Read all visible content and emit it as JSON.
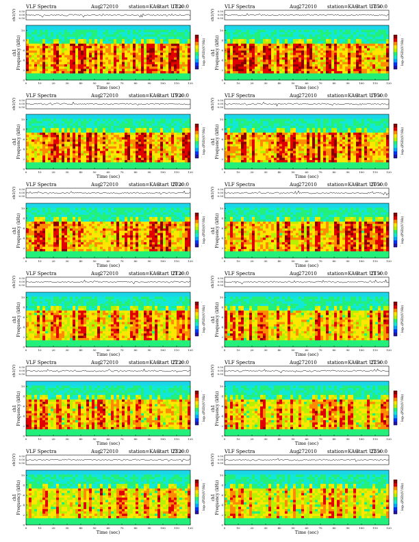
{
  "colors": {
    "colormap": [
      "#1f13a8",
      "#0033ff",
      "#00a8ff",
      "#12e8d6",
      "#22f07a",
      "#b8f000",
      "#ffe600",
      "#ff8c00",
      "#e00000",
      "#8a0000"
    ],
    "background_band": "#1ad6e8",
    "axis": "#000000"
  },
  "common": {
    "header_left": "VLF Spectra",
    "header_mid_month": "Aug",
    "header_mid_year": "2010",
    "station": "station=KAG",
    "start_prefix": "start  UT  =",
    "xlabel": "Time  (sec)",
    "ylabel_rows": [
      "ch1",
      "Frequency  (kHz)"
    ],
    "wave_ylabel": "ch1(V)",
    "cbar_label": "log₁₀(PSD)(V²/Hz)",
    "x_ticks": [
      "0",
      "10",
      "20",
      "30",
      "40",
      "50",
      "60",
      "70",
      "80",
      "90",
      "100",
      "110",
      "120"
    ],
    "y_ticks": [
      "0",
      "2",
      "4",
      "6",
      "8",
      "10"
    ],
    "wave_ticks": [
      "0.50",
      "0.00",
      "-0.50"
    ],
    "cbar_ticks": [
      "-",
      "-"
    ]
  },
  "chart_data": [
    {
      "type": "heatmap",
      "start_ut": "1820:0",
      "day": "27",
      "x_range": [
        0,
        120
      ],
      "y_range": [
        0,
        11
      ],
      "intensity": 0.8
    },
    {
      "type": "heatmap",
      "start_ut": "1850:0",
      "day": "27",
      "x_range": [
        0,
        120
      ],
      "y_range": [
        0,
        11
      ],
      "intensity": 0.8
    },
    {
      "type": "heatmap",
      "start_ut": "1920:0",
      "day": "27",
      "x_range": [
        0,
        120
      ],
      "y_range": [
        0,
        11
      ],
      "intensity": 0.78
    },
    {
      "type": "heatmap",
      "start_ut": "1950:0",
      "day": "27",
      "x_range": [
        0,
        120
      ],
      "y_range": [
        0,
        11
      ],
      "intensity": 0.82
    },
    {
      "type": "heatmap",
      "start_ut": "2020:0",
      "day": "27",
      "x_range": [
        0,
        120
      ],
      "y_range": [
        0,
        11
      ],
      "intensity": 0.78
    },
    {
      "type": "heatmap",
      "start_ut": "2050:0",
      "day": "27",
      "x_range": [
        0,
        120
      ],
      "y_range": [
        0,
        11
      ],
      "intensity": 0.76
    },
    {
      "type": "heatmap",
      "start_ut": "2120:0",
      "day": "27",
      "x_range": [
        0,
        120
      ],
      "y_range": [
        0,
        11
      ],
      "intensity": 0.64
    },
    {
      "type": "heatmap",
      "start_ut": "2150:0",
      "day": "27",
      "x_range": [
        0,
        120
      ],
      "y_range": [
        0,
        11
      ],
      "intensity": 0.64
    },
    {
      "type": "heatmap",
      "start_ut": "2220:0",
      "day": "27",
      "x_range": [
        0,
        120
      ],
      "y_range": [
        0,
        11
      ],
      "intensity": 0.62
    },
    {
      "type": "heatmap",
      "start_ut": "2250:0",
      "day": "27",
      "x_range": [
        0,
        120
      ],
      "y_range": [
        0,
        11
      ],
      "intensity": 0.58
    },
    {
      "type": "heatmap",
      "start_ut": "2320:0",
      "day": "27",
      "x_range": [
        0,
        120
      ],
      "y_range": [
        0,
        11
      ],
      "intensity": 0.55
    },
    {
      "type": "heatmap",
      "start_ut": "2350:0",
      "day": "27",
      "x_range": [
        0,
        120
      ],
      "y_range": [
        0,
        11
      ],
      "intensity": 0.5
    }
  ]
}
